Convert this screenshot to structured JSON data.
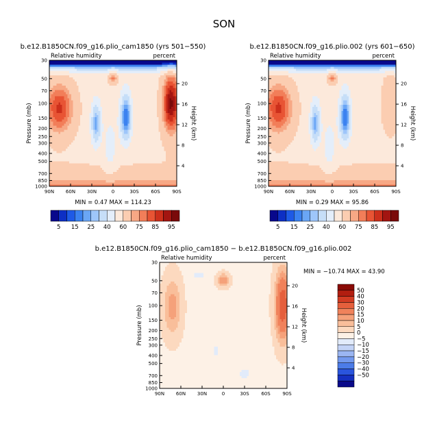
{
  "figure_title": "SON",
  "colors": {
    "abs_scale": [
      "#08088c",
      "#0d2fc4",
      "#1e5ae6",
      "#3b82f0",
      "#6aa6f5",
      "#9ec6fa",
      "#c6def8",
      "#e4eefa",
      "#fce9db",
      "#fbcdb1",
      "#f7a885",
      "#f27e59",
      "#e85434",
      "#cc2f1b",
      "#a31511",
      "#7a0a0a"
    ],
    "diff_scale": [
      "#0a0a8a",
      "#1530c0",
      "#2a55dd",
      "#4c7ce8",
      "#7399ee",
      "#9bb6f2",
      "#c3d3f6",
      "#e2ebfa",
      "#fdf1e6",
      "#fcd9bf",
      "#f9be9a",
      "#f5a17a",
      "#f0825b",
      "#e55f3c",
      "#d23c23",
      "#b21e10",
      "#8a0b06"
    ]
  },
  "chart_data": [
    {
      "type": "heatmap",
      "title": "b.e12.B1850CN.f09_g16.plio_cam1850 (yrs 501−550)",
      "left_label": "Relative humidity",
      "right_label": "percent",
      "ylabel": "Pressure (mb)",
      "ylabel_right": "Height (km)",
      "xticks": [
        "90N",
        "60N",
        "30N",
        "0",
        "30S",
        "60S",
        "90S"
      ],
      "yticks": [
        "1000",
        "850",
        "700",
        "500",
        "400",
        "300",
        "250",
        "200",
        "150",
        "100",
        "70",
        "50",
        "30"
      ],
      "yticks_right": [
        "4",
        "8",
        "12",
        "16",
        "20"
      ],
      "stats": "MIN =    0.47   MAX =  114.23",
      "min": 0.47,
      "max": 114.23,
      "levels": [
        5,
        10,
        15,
        20,
        25,
        30,
        40,
        50,
        60,
        70,
        75,
        80,
        85,
        90,
        95
      ],
      "colorbar_labels": [
        "5",
        "15",
        "25",
        "40",
        "60",
        "75",
        "85",
        "95"
      ]
    },
    {
      "type": "heatmap",
      "title": "b.e12.B1850CN.f09_g16.plio.002 (yrs 601−650)",
      "left_label": "Relative humidity",
      "right_label": "percent",
      "ylabel": "Pressure (mb)",
      "ylabel_right": "Height (km)",
      "xticks": [
        "90N",
        "60N",
        "30N",
        "0",
        "30S",
        "60S",
        "90S"
      ],
      "yticks": [
        "1000",
        "850",
        "700",
        "500",
        "400",
        "300",
        "250",
        "200",
        "150",
        "100",
        "70",
        "50",
        "30"
      ],
      "yticks_right": [
        "4",
        "8",
        "12",
        "16",
        "20"
      ],
      "stats": "MIN =    0.29   MAX =   95.86",
      "min": 0.29,
      "max": 95.86,
      "levels": [
        5,
        10,
        15,
        20,
        25,
        30,
        40,
        50,
        60,
        70,
        75,
        80,
        85,
        90,
        95
      ],
      "colorbar_labels": [
        "5",
        "15",
        "25",
        "40",
        "60",
        "75",
        "85",
        "95"
      ]
    },
    {
      "type": "heatmap",
      "title": "b.e12.B1850CN.f09_g16.plio_cam1850 − b.e12.B1850CN.f09_g16.plio.002",
      "left_label": "Relative humidity",
      "right_label": "percent",
      "ylabel": "Pressure (mb)",
      "ylabel_right": "Height (km)",
      "xticks": [
        "90N",
        "60N",
        "30N",
        "0",
        "30S",
        "60S",
        "90S"
      ],
      "yticks": [
        "1000",
        "850",
        "700",
        "500",
        "400",
        "300",
        "250",
        "200",
        "150",
        "100",
        "70",
        "50",
        "30"
      ],
      "yticks_right": [
        "4",
        "8",
        "12",
        "16",
        "20"
      ],
      "stats": "MIN = −10.74   MAX =   43.90",
      "min": -10.74,
      "max": 43.9,
      "levels": [
        -50,
        -40,
        -30,
        -20,
        -15,
        -10,
        -5,
        0,
        5,
        10,
        15,
        20,
        30,
        40,
        50
      ],
      "colorbar_labels": [
        "50",
        "40",
        "30",
        "20",
        "15",
        "10",
        "5",
        "0",
        "−5",
        "−10",
        "−15",
        "−20",
        "−30",
        "−40",
        "−50"
      ]
    }
  ]
}
